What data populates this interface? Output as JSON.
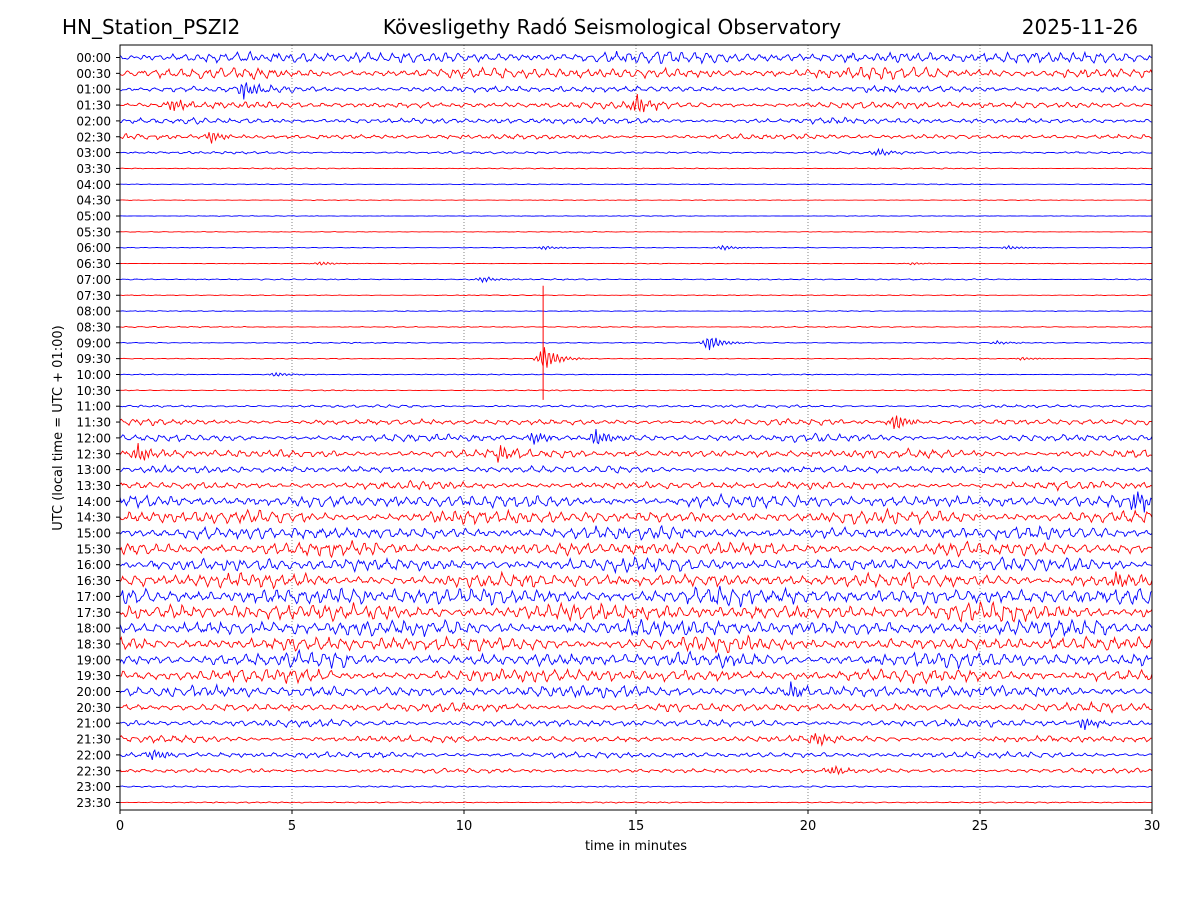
{
  "header": {
    "station": "HN_Station_PSZI2",
    "observatory": "Kövesligethy Radó Seismological Observatory",
    "date": "2025-11-26"
  },
  "chart_data": {
    "type": "line",
    "title": "Kövesligethy Radó Seismological Observatory",
    "xlabel": "time in minutes",
    "ylabel": "UTC (local time = UTC + 01:00)",
    "xlim": [
      0,
      30
    ],
    "xticks": [
      "0",
      "5",
      "10",
      "15",
      "20",
      "25",
      "30"
    ],
    "grid": "vertical dotted lines at every 5 minutes",
    "colors": {
      "even_rows": "#0000ff",
      "odd_rows": "#ff0000"
    },
    "rows": [
      {
        "label": "00:00",
        "activity": 0.9,
        "events": []
      },
      {
        "label": "00:30",
        "activity": 0.85,
        "events": []
      },
      {
        "label": "01:00",
        "activity": 0.5,
        "events": [
          [
            3.6,
            1.5
          ]
        ]
      },
      {
        "label": "01:30",
        "activity": 0.5,
        "events": [
          [
            15.0,
            1.6
          ],
          [
            1.5,
            1.2
          ]
        ]
      },
      {
        "label": "02:00",
        "activity": 0.45,
        "events": []
      },
      {
        "label": "02:30",
        "activity": 0.4,
        "events": [
          [
            2.6,
            1.0
          ]
        ]
      },
      {
        "label": "03:00",
        "activity": 0.18,
        "events": [
          [
            22.0,
            0.7
          ]
        ]
      },
      {
        "label": "03:30",
        "activity": 0.08,
        "events": []
      },
      {
        "label": "04:00",
        "activity": 0.06,
        "events": []
      },
      {
        "label": "04:30",
        "activity": 0.05,
        "events": []
      },
      {
        "label": "05:00",
        "activity": 0.05,
        "events": []
      },
      {
        "label": "05:30",
        "activity": 0.05,
        "events": []
      },
      {
        "label": "06:00",
        "activity": 0.05,
        "events": [
          [
            12.3,
            0.35
          ],
          [
            17.5,
            0.45
          ],
          [
            25.8,
            0.35
          ]
        ]
      },
      {
        "label": "06:30",
        "activity": 0.05,
        "events": [
          [
            5.8,
            0.35
          ],
          [
            23.0,
            0.2
          ]
        ]
      },
      {
        "label": "07:00",
        "activity": 0.1,
        "events": [
          [
            10.5,
            0.5
          ]
        ]
      },
      {
        "label": "07:30",
        "activity": 0.06,
        "events": []
      },
      {
        "label": "08:00",
        "activity": 0.06,
        "events": []
      },
      {
        "label": "08:30",
        "activity": 0.08,
        "events": []
      },
      {
        "label": "09:00",
        "activity": 0.08,
        "events": [
          [
            17.1,
            1.4
          ],
          [
            25.5,
            0.3
          ]
        ]
      },
      {
        "label": "09:30",
        "activity": 0.07,
        "events": [
          [
            12.3,
            2.2
          ],
          [
            26.2,
            0.3
          ]
        ]
      },
      {
        "label": "10:00",
        "activity": 0.08,
        "events": [
          [
            4.5,
            0.4
          ]
        ]
      },
      {
        "label": "10:30",
        "activity": 0.08,
        "events": []
      },
      {
        "label": "11:00",
        "activity": 0.2,
        "events": []
      },
      {
        "label": "11:30",
        "activity": 0.45,
        "events": [
          [
            22.5,
            1.4
          ]
        ]
      },
      {
        "label": "12:00",
        "activity": 0.55,
        "events": [
          [
            13.8,
            1.5
          ],
          [
            12.0,
            1.1
          ]
        ]
      },
      {
        "label": "12:30",
        "activity": 0.65,
        "events": [
          [
            0.5,
            1.5
          ],
          [
            11.0,
            1.3
          ]
        ]
      },
      {
        "label": "13:00",
        "activity": 0.55,
        "events": []
      },
      {
        "label": "13:30",
        "activity": 0.6,
        "events": []
      },
      {
        "label": "14:00",
        "activity": 0.95,
        "events": [
          [
            29.5,
            1.8
          ]
        ]
      },
      {
        "label": "14:30",
        "activity": 1.0,
        "events": []
      },
      {
        "label": "15:00",
        "activity": 0.95,
        "events": []
      },
      {
        "label": "15:30",
        "activity": 1.0,
        "events": []
      },
      {
        "label": "16:00",
        "activity": 1.05,
        "events": []
      },
      {
        "label": "16:30",
        "activity": 1.1,
        "events": [
          [
            29.0,
            1.4
          ]
        ]
      },
      {
        "label": "17:00",
        "activity": 1.3,
        "events": []
      },
      {
        "label": "17:30",
        "activity": 1.3,
        "events": []
      },
      {
        "label": "18:00",
        "activity": 1.2,
        "events": []
      },
      {
        "label": "18:30",
        "activity": 1.1,
        "events": []
      },
      {
        "label": "19:00",
        "activity": 1.1,
        "events": []
      },
      {
        "label": "19:30",
        "activity": 1.0,
        "events": []
      },
      {
        "label": "20:00",
        "activity": 0.9,
        "events": [
          [
            19.5,
            1.3
          ]
        ]
      },
      {
        "label": "20:30",
        "activity": 0.65,
        "events": []
      },
      {
        "label": "21:00",
        "activity": 0.55,
        "events": [
          [
            28.0,
            1.2
          ]
        ]
      },
      {
        "label": "21:30",
        "activity": 0.5,
        "events": [
          [
            20.2,
            1.0
          ]
        ]
      },
      {
        "label": "22:00",
        "activity": 0.45,
        "events": [
          [
            0.9,
            0.9
          ]
        ]
      },
      {
        "label": "22:30",
        "activity": 0.35,
        "events": [
          [
            20.7,
            0.7
          ]
        ]
      },
      {
        "label": "23:00",
        "activity": 0.12,
        "events": []
      },
      {
        "label": "23:30",
        "activity": 0.1,
        "events": []
      }
    ]
  }
}
